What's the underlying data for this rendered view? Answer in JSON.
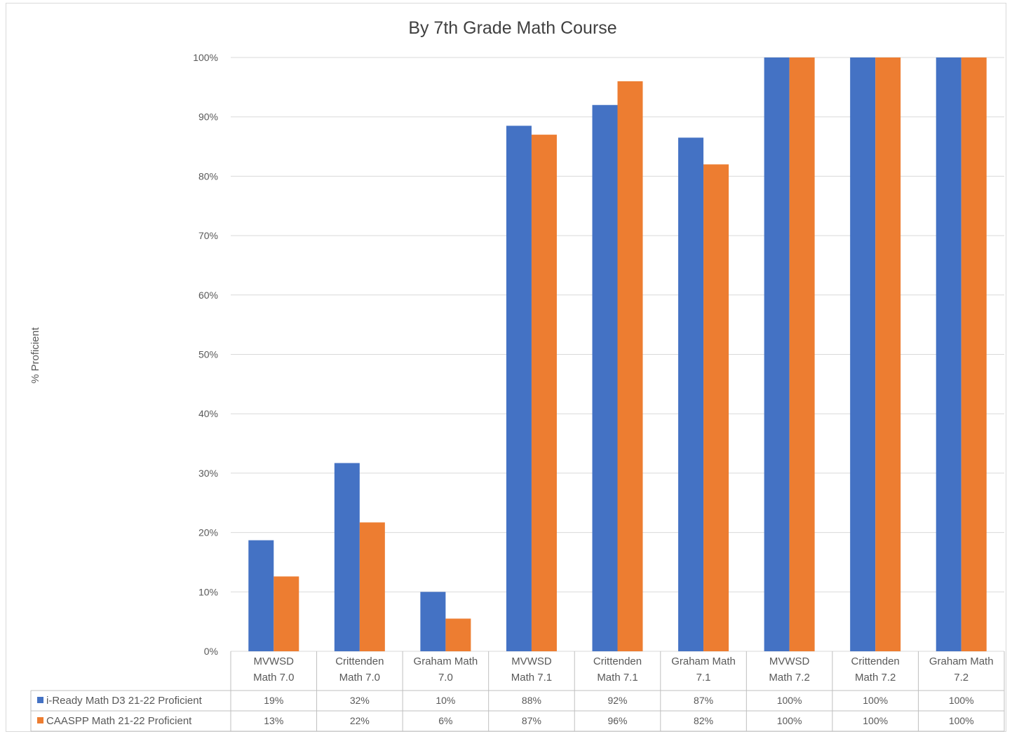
{
  "chart_data": {
    "type": "bar",
    "title": "By 7th Grade Math Course",
    "ylabel": "% Proficient",
    "xlabel": "",
    "ylim": [
      0,
      100
    ],
    "yticks": [
      "0%",
      "10%",
      "20%",
      "30%",
      "40%",
      "50%",
      "60%",
      "70%",
      "80%",
      "90%",
      "100%"
    ],
    "grid": true,
    "legend": "data-table-left",
    "categories": [
      [
        "MVWSD",
        "Math 7.0"
      ],
      [
        "Crittenden",
        "Math 7.0"
      ],
      [
        "Graham Math",
        "7.0"
      ],
      [
        "MVWSD",
        "Math 7.1"
      ],
      [
        "Crittenden",
        "Math 7.1"
      ],
      [
        "Graham Math",
        "7.1"
      ],
      [
        "MVWSD",
        "Math 7.2"
      ],
      [
        "Crittenden",
        "Math 7.2"
      ],
      [
        "Graham Math",
        "7.2"
      ]
    ],
    "series": [
      {
        "name": "i-Ready Math D3 21-22 Proficient",
        "color": "#4472c4",
        "values": [
          18.7,
          31.7,
          10,
          88.5,
          92,
          86.5,
          100,
          100,
          100
        ],
        "labels": [
          "19%",
          "32%",
          "10%",
          "88%",
          "92%",
          "87%",
          "100%",
          "100%",
          "100%"
        ]
      },
      {
        "name": "CAASPP Math 21-22 Proficient",
        "color": "#ed7d31",
        "values": [
          12.6,
          21.7,
          5.5,
          87,
          96,
          82,
          100,
          100,
          100
        ],
        "labels": [
          "13%",
          "22%",
          "6%",
          "87%",
          "96%",
          "82%",
          "100%",
          "100%",
          "100%"
        ]
      }
    ]
  }
}
